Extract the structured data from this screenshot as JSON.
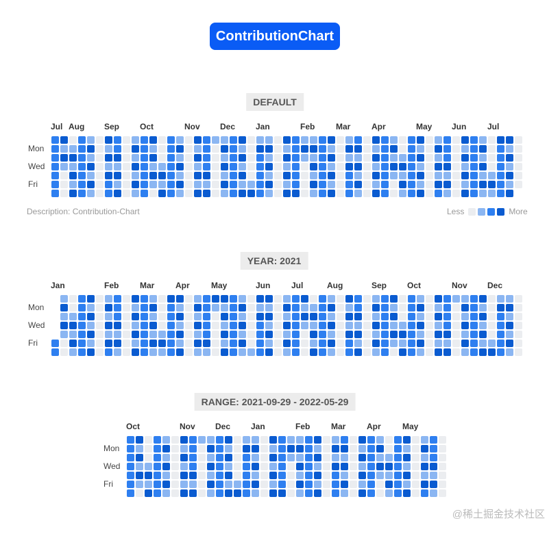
{
  "title_button": "ContributionChart",
  "colors": {
    "brand": "#0a5cf5",
    "levels": [
      "#ebedf0",
      "#8bb6f2",
      "#2e7ff0",
      "#0a5bd0"
    ]
  },
  "days": [
    "Mon",
    "Wed",
    "Fri"
  ],
  "sections": [
    {
      "label": "DEFAULT",
      "months": [
        "Jul",
        "Aug",
        "Sep",
        "Oct",
        "Nov",
        "Dec",
        "Jan",
        "Feb",
        "Mar",
        "Apr",
        "May",
        "Jun",
        "Jul"
      ],
      "description": "Description: Contribution-Chart",
      "legend": {
        "less": "Less",
        "more": "More"
      }
    },
    {
      "label": "YEAR: 2021",
      "months": [
        "Jan",
        "Feb",
        "Mar",
        "Apr",
        "May",
        "Jun",
        "Jul",
        "Aug",
        "Sep",
        "Oct",
        "Nov",
        "Dec"
      ]
    },
    {
      "label": "RANGE: 2021-09-29 - 2022-05-29",
      "months": [
        "Oct",
        "Nov",
        "Dec",
        "Jan",
        "Feb",
        "Mar",
        "Apr",
        "May"
      ]
    }
  ],
  "watermark": "@稀土掘金技术社区"
}
